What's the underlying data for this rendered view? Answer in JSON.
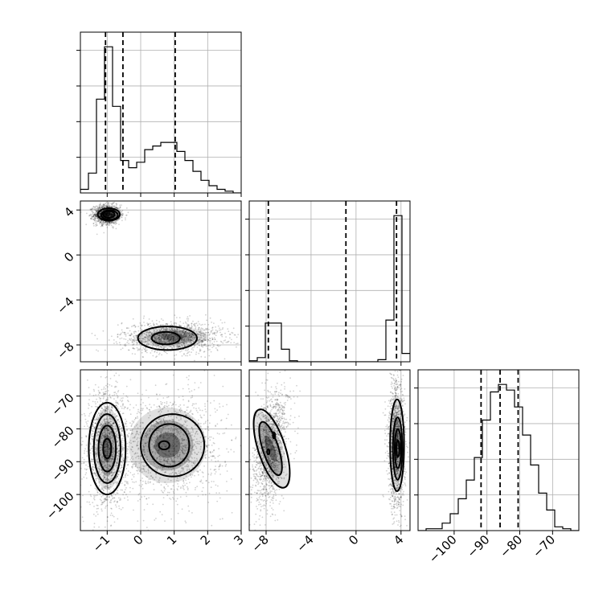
{
  "chart_data": {
    "type": "corner",
    "grid": true,
    "params": [
      {
        "id": "p0",
        "range": [
          -1.8,
          3.0
        ],
        "ticks": [
          -1,
          0,
          1,
          2,
          3
        ]
      },
      {
        "id": "p1",
        "range": [
          -9.5,
          4.8
        ],
        "ticks": [
          -8,
          -4,
          0,
          4
        ]
      },
      {
        "id": "p2",
        "range": [
          -111,
          -62
        ],
        "ticks": [
          -100,
          -90,
          -80,
          -70
        ]
      }
    ],
    "histograms": [
      {
        "param": "p0",
        "bin_edges": [
          -1.8,
          -1.56,
          -1.32,
          -1.08,
          -0.84,
          -0.6,
          -0.36,
          -0.12,
          0.12,
          0.36,
          0.6,
          0.84,
          1.08,
          1.32,
          1.56,
          1.8,
          2.04,
          2.28,
          2.52,
          2.76,
          3.0
        ],
        "counts": [
          2,
          11,
          52,
          81,
          48,
          18,
          14,
          17,
          24,
          26,
          28,
          28,
          23,
          18,
          12,
          7,
          4,
          2,
          1,
          0
        ],
        "quantiles": [
          -1.05,
          -0.53,
          1.03
        ]
      },
      {
        "param": "p1",
        "bin_edges": [
          -9.5,
          -8.785,
          -8.07,
          -7.355,
          -6.64,
          -5.925,
          -5.21,
          -4.495,
          -3.78,
          -3.065,
          -2.35,
          -1.635,
          -0.92,
          -0.205,
          0.51,
          1.225,
          1.94,
          2.655,
          3.37,
          4.085,
          4.8
        ],
        "counts": [
          1,
          4,
          37,
          37,
          12,
          1,
          0,
          0,
          0,
          0,
          0,
          0,
          0,
          0,
          0,
          0,
          2,
          40,
          140,
          8
        ],
        "quantiles": [
          -7.8,
          -0.9,
          3.6
        ]
      },
      {
        "param": "p2",
        "bin_edges": [
          -111,
          -108.55,
          -106.1,
          -103.65,
          -101.2,
          -98.75,
          -96.3,
          -93.85,
          -91.4,
          -88.95,
          -86.5,
          -84.05,
          -81.6,
          -79.15,
          -76.7,
          -74.25,
          -71.8,
          -69.35,
          -66.9,
          -64.45,
          -62
        ],
        "counts": [
          0,
          1,
          1,
          4,
          9,
          17,
          27,
          39,
          59,
          74,
          78,
          75,
          66,
          51,
          35,
          20,
          11,
          2,
          1,
          0
        ],
        "quantiles": [
          -91.8,
          -86.0,
          -80.5
        ]
      }
    ],
    "pairs": [
      {
        "x": "p0",
        "y": "p1",
        "modes": [
          {
            "cx": -1.0,
            "cy": 3.6,
            "sx": 0.13,
            "sy": 0.28
          },
          {
            "cx": 0.95,
            "cy": -7.3,
            "sx": 0.5,
            "sy": 0.45
          }
        ],
        "contours": [
          {
            "cx": -0.95,
            "cy": 3.6,
            "rx": 0.33,
            "ry": 0.55
          },
          {
            "cx": -0.93,
            "cy": 3.55,
            "rx": 0.25,
            "ry": 0.42
          },
          {
            "cx": -0.95,
            "cy": 3.6,
            "rx": 0.17,
            "ry": 0.3
          },
          {
            "cx": 0.8,
            "cy": -7.4,
            "rx": 0.88,
            "ry": 1.05
          },
          {
            "cx": 0.75,
            "cy": -7.4,
            "rx": 0.42,
            "ry": 0.55
          }
        ]
      },
      {
        "x": "p0",
        "y": "p2",
        "modes": [
          {
            "cx": -1.0,
            "cy": -86,
            "sx": 0.2,
            "sy": 6
          },
          {
            "cx": 0.8,
            "cy": -85,
            "sx": 0.55,
            "sy": 5.5
          }
        ],
        "contours": [
          {
            "cx": -1.0,
            "cy": -86,
            "rx": 0.55,
            "ry": 14
          },
          {
            "cx": -1.0,
            "cy": -86,
            "rx": 0.4,
            "ry": 10.5
          },
          {
            "cx": -1.0,
            "cy": -86,
            "rx": 0.26,
            "ry": 7
          },
          {
            "cx": -1.0,
            "cy": -86,
            "rx": 0.12,
            "ry": 3
          },
          {
            "cx": 0.95,
            "cy": -85,
            "rx": 0.95,
            "ry": 9.5
          },
          {
            "cx": 0.85,
            "cy": -85,
            "rx": 0.6,
            "ry": 6.5
          },
          {
            "cx": 0.7,
            "cy": -85,
            "rx": 0.16,
            "ry": 1.3
          }
        ]
      },
      {
        "x": "p1",
        "y": "p2",
        "modes": [
          {
            "cx": -7.6,
            "cy": -86,
            "sx": 0.5,
            "sy": 6,
            "rot": -20
          },
          {
            "cx": 3.6,
            "cy": -85,
            "sx": 0.25,
            "sy": 6.5
          }
        ],
        "contours": [
          {
            "cx": -7.5,
            "cy": -86,
            "rx": 1.2,
            "ry": 12.5,
            "rot": -18
          },
          {
            "cx": -7.6,
            "cy": -86,
            "rx": 0.7,
            "ry": 8.5,
            "rot": -18
          },
          {
            "cx": -7.8,
            "cy": -87,
            "rx": 0.1,
            "ry": 0.8,
            "rot": 0
          },
          {
            "cx": -7.3,
            "cy": -82,
            "rx": 0.1,
            "ry": 0.9,
            "rot": 0
          },
          {
            "cx": 3.65,
            "cy": -85,
            "rx": 0.62,
            "ry": 14
          },
          {
            "cx": 3.7,
            "cy": -86,
            "rx": 0.42,
            "ry": 9.5
          },
          {
            "cx": 3.72,
            "cy": -86,
            "rx": 0.28,
            "ry": 6
          },
          {
            "cx": 3.72,
            "cy": -86,
            "rx": 0.14,
            "ry": 2.5
          }
        ]
      }
    ]
  }
}
